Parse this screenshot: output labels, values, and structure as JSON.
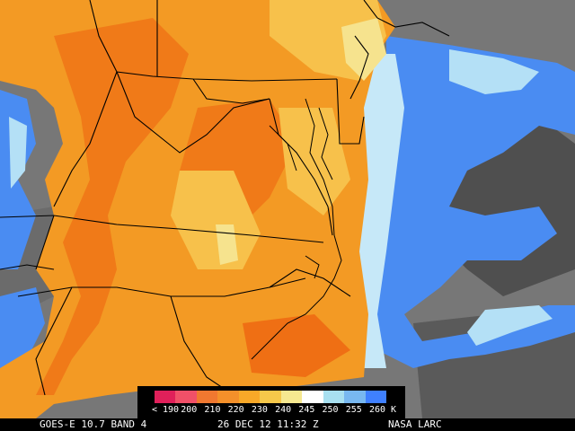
{
  "footer": {
    "satellite": "GOES-E 10.7 BAND 4",
    "datetime": "26 DEC 12 11:32 Z",
    "source": "NASA LARC"
  },
  "legend": {
    "unit": "K",
    "ticks": [
      "< 190",
      "200",
      "210",
      "220",
      "230",
      "240",
      "245",
      "250",
      "255",
      "260"
    ],
    "colors": [
      "#e0205a",
      "#f05068",
      "#f07830",
      "#f4902a",
      "#f8a828",
      "#f6c84a",
      "#f6e890",
      "#ffffff",
      "#a8e0f0",
      "#78b8f0",
      "#3f80ff"
    ]
  },
  "map_colors": {
    "cold_cloud_orange": "#f39a24",
    "deep_orange": "#f07a18",
    "light_orange": "#f7c14b",
    "pale_yellow": "#f6e38e",
    "cloud_blue": "#4a8cf2",
    "light_blue": "#b0dcf6",
    "clear_gray": "#767676",
    "dark_gray": "#4c4c4c",
    "border_line": "#000000"
  }
}
